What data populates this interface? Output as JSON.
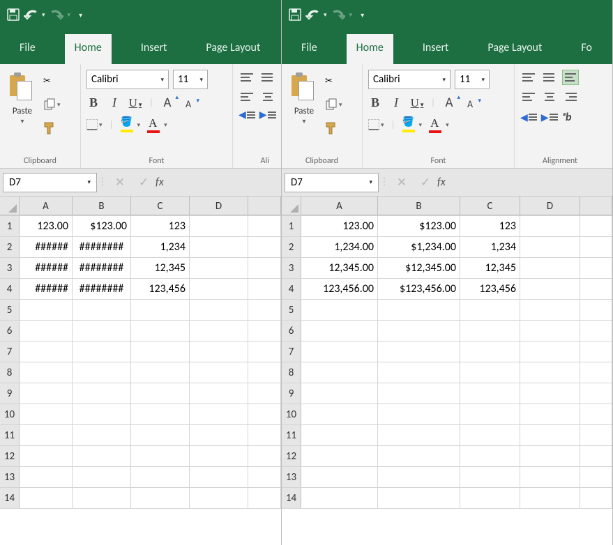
{
  "colors": {
    "ribbon_green": "#1d6f42",
    "ribbon_bg": "#f3f3f3",
    "grid_border": "#d4d4d4",
    "header_bg": "#e6e6e6",
    "fill_highlight": "#ffeb00",
    "font_color_swatch": "#e81313"
  },
  "qat": {
    "save": "💾",
    "undo": "↶",
    "redo": "↷"
  },
  "tabs": {
    "file": "File",
    "home": "Home",
    "insert": "Insert",
    "page_layout": "Page Layout",
    "formulas_partial": "Fo"
  },
  "ribbon": {
    "clipboard": {
      "label": "Clipboard",
      "paste": "Paste"
    },
    "font": {
      "label": "Font",
      "name": "Calibri",
      "size": "11",
      "bold": "B",
      "italic": "I",
      "underline": "U"
    },
    "alignment": {
      "label_short": "Ali",
      "label_full": "Alignment"
    }
  },
  "namebox": {
    "value": "D7"
  },
  "fx": {
    "cancel": "✕",
    "confirm": "✓",
    "label": "fx"
  },
  "grid_left": {
    "columns": [
      "A",
      "B",
      "C",
      "D"
    ],
    "col_widths": {
      "A": 76,
      "B": 84,
      "C": 84,
      "D": 84
    },
    "rows": [
      {
        "n": "1",
        "A": "123.00",
        "B": "$123.00",
        "C": "123",
        "D": ""
      },
      {
        "n": "2",
        "A": "######",
        "B": "########",
        "C": "1,234",
        "D": ""
      },
      {
        "n": "3",
        "A": "######",
        "B": "########",
        "C": "12,345",
        "D": ""
      },
      {
        "n": "4",
        "A": "######",
        "B": "########",
        "C": "123,456",
        "D": ""
      },
      {
        "n": "5",
        "A": "",
        "B": "",
        "C": "",
        "D": ""
      },
      {
        "n": "6",
        "A": "",
        "B": "",
        "C": "",
        "D": ""
      },
      {
        "n": "7",
        "A": "",
        "B": "",
        "C": "",
        "D": ""
      },
      {
        "n": "8",
        "A": "",
        "B": "",
        "C": "",
        "D": ""
      },
      {
        "n": "9",
        "A": "",
        "B": "",
        "C": "",
        "D": ""
      },
      {
        "n": "10",
        "A": "",
        "B": "",
        "C": "",
        "D": ""
      },
      {
        "n": "11",
        "A": "",
        "B": "",
        "C": "",
        "D": ""
      },
      {
        "n": "12",
        "A": "",
        "B": "",
        "C": "",
        "D": ""
      },
      {
        "n": "13",
        "A": "",
        "B": "",
        "C": "",
        "D": ""
      },
      {
        "n": "14",
        "A": "",
        "B": "",
        "C": "",
        "D": ""
      }
    ]
  },
  "grid_right": {
    "columns": [
      "A",
      "B",
      "C",
      "D"
    ],
    "col_widths": {
      "A": 110,
      "B": 118,
      "C": 86,
      "D": 86
    },
    "rows": [
      {
        "n": "1",
        "A": "123.00",
        "B": "$123.00",
        "C": "123",
        "D": ""
      },
      {
        "n": "2",
        "A": "1,234.00",
        "B": "$1,234.00",
        "C": "1,234",
        "D": ""
      },
      {
        "n": "3",
        "A": "12,345.00",
        "B": "$12,345.00",
        "C": "12,345",
        "D": ""
      },
      {
        "n": "4",
        "A": "123,456.00",
        "B": "$123,456.00",
        "C": "123,456",
        "D": ""
      },
      {
        "n": "5",
        "A": "",
        "B": "",
        "C": "",
        "D": ""
      },
      {
        "n": "6",
        "A": "",
        "B": "",
        "C": "",
        "D": ""
      },
      {
        "n": "7",
        "A": "",
        "B": "",
        "C": "",
        "D": ""
      },
      {
        "n": "8",
        "A": "",
        "B": "",
        "C": "",
        "D": ""
      },
      {
        "n": "9",
        "A": "",
        "B": "",
        "C": "",
        "D": ""
      },
      {
        "n": "10",
        "A": "",
        "B": "",
        "C": "",
        "D": ""
      },
      {
        "n": "11",
        "A": "",
        "B": "",
        "C": "",
        "D": ""
      },
      {
        "n": "12",
        "A": "",
        "B": "",
        "C": "",
        "D": ""
      },
      {
        "n": "13",
        "A": "",
        "B": "",
        "C": "",
        "D": ""
      },
      {
        "n": "14",
        "A": "",
        "B": "",
        "C": "",
        "D": ""
      }
    ]
  }
}
